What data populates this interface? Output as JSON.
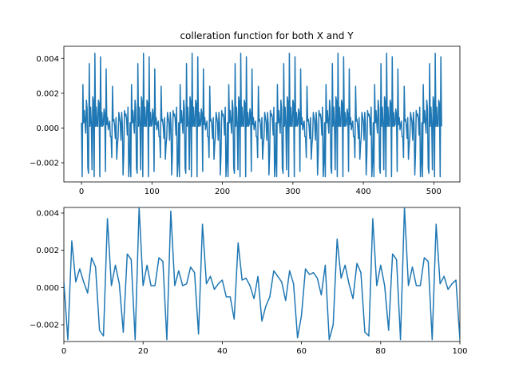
{
  "chart_data": [
    {
      "type": "line",
      "title": "colleration function for both X and Y",
      "xlabel": "",
      "ylabel": "",
      "xlim": [
        -25,
        537
      ],
      "ylim": [
        -0.0031,
        0.0047
      ],
      "x_ticks": [
        0,
        100,
        200,
        300,
        400,
        500
      ],
      "x_tick_labels": [
        "0",
        "100",
        "200",
        "300",
        "400",
        "500"
      ],
      "y_ticks": [
        -0.002,
        0.0,
        0.002,
        0.004
      ],
      "y_tick_labels": [
        "−0.002",
        "0.000",
        "0.002",
        "0.004"
      ],
      "grid": false,
      "color": "#1f77b4",
      "x_start": 0,
      "x_end": 511,
      "period": 69,
      "series": [
        {
          "name": "",
          "pattern": [
            0.0003,
            -0.0028,
            0.0025,
            0.0003,
            0.001,
            0.0003,
            -0.0003,
            0.0016,
            0.0011,
            -0.0023,
            -0.0026,
            0.0037,
            0.0001,
            0.0012,
            0.0002,
            -0.0024,
            0.0018,
            0.0015,
            -0.0028,
            0.0043,
            0.0001,
            0.0012,
            0.0001,
            0.0001,
            0.0016,
            0.0014,
            -0.0028,
            0.0041,
            0.0001,
            0.0009,
            0.0001,
            0.0002,
            0.0011,
            0.0008,
            -0.0025,
            0.0034,
            0.0002,
            0.0006,
            -0.0001,
            0.0002,
            0.0004,
            -0.0005,
            -0.0005,
            -0.0017,
            0.0024,
            0.0004,
            0.0005,
            0.0001,
            -0.0006,
            0.0006,
            -0.0018,
            -0.001,
            -0.0005,
            0.0009,
            0.0006,
            0.0003,
            -0.0007,
            0.0009,
            0.0002,
            -0.0027,
            -0.0015,
            0.001,
            0.0007,
            0.0008,
            0.0005,
            -0.0004,
            0.0012,
            -0.0028,
            -0.002
          ]
        }
      ]
    },
    {
      "type": "line",
      "title": "",
      "xlabel": "",
      "ylabel": "",
      "xlim": [
        0,
        100
      ],
      "ylim": [
        -0.0029,
        0.0043
      ],
      "x_ticks": [
        0,
        20,
        40,
        60,
        80,
        100
      ],
      "x_tick_labels": [
        "0",
        "20",
        "40",
        "60",
        "80",
        "100"
      ],
      "y_ticks": [
        -0.002,
        0.0,
        0.002,
        0.004
      ],
      "y_tick_labels": [
        "−0.002",
        "0.000",
        "0.002",
        "0.004"
      ],
      "grid": false,
      "color": "#1f77b4",
      "series": [
        {
          "name": "",
          "x": [
            0,
            1,
            2,
            3,
            4,
            5,
            6,
            7,
            8,
            9,
            10,
            11,
            12,
            13,
            14,
            15,
            16,
            17,
            18,
            19,
            20,
            21,
            22,
            23,
            24,
            25,
            26,
            27,
            28,
            29,
            30,
            31,
            32,
            33,
            34,
            35,
            36,
            37,
            38,
            39,
            40,
            41,
            42,
            43,
            44,
            45,
            46,
            47,
            48,
            49,
            50,
            51,
            52,
            53,
            54,
            55,
            56,
            57,
            58,
            59,
            60,
            61,
            62,
            63,
            64,
            65,
            66,
            67,
            68,
            69,
            70,
            71,
            72,
            73,
            74,
            75,
            76,
            77,
            78,
            79,
            80,
            81,
            82,
            83,
            84,
            85,
            86,
            87,
            88,
            89,
            90,
            91,
            92,
            93,
            94,
            95,
            96,
            97,
            98,
            99,
            100
          ],
          "y": [
            0.0003,
            -0.0028,
            0.0025,
            0.0003,
            0.001,
            0.0003,
            -0.0003,
            0.0016,
            0.0011,
            -0.0023,
            -0.0026,
            0.0037,
            0.0001,
            0.0012,
            0.0002,
            -0.0024,
            0.0018,
            0.0015,
            -0.0028,
            0.0043,
            0.0001,
            0.0012,
            0.0001,
            0.0001,
            0.0016,
            0.0014,
            -0.0028,
            0.0041,
            0.0001,
            0.0009,
            0.0001,
            0.0002,
            0.0011,
            0.0008,
            -0.0025,
            0.0034,
            0.0002,
            0.0006,
            -0.0001,
            0.0002,
            0.0004,
            -0.0005,
            -0.0005,
            -0.0017,
            0.0024,
            0.0004,
            0.0005,
            0.0001,
            -0.0006,
            0.0006,
            -0.0018,
            -0.001,
            -0.0005,
            0.0009,
            0.0006,
            0.0003,
            -0.0007,
            0.0009,
            0.0002,
            -0.0027,
            -0.0015,
            0.001,
            0.0007,
            0.0008,
            0.0005,
            -0.0004,
            0.0012,
            -0.0028,
            -0.002,
            0.0026,
            0.0005,
            0.0012,
            0.0002,
            -0.0006,
            0.0013,
            0.0008,
            -0.0024,
            -0.0026,
            0.0037,
            0.0001,
            0.0012,
            0.0001,
            -0.0023,
            0.0018,
            0.0015,
            -0.0028,
            0.0043,
            0.0001,
            0.0011,
            0.0001,
            0.0001,
            0.0016,
            0.0014,
            -0.0028,
            0.0034,
            0.0002,
            0.0006,
            -0.0001,
            0.0002,
            0.0004,
            -0.0028
          ]
        }
      ]
    }
  ]
}
